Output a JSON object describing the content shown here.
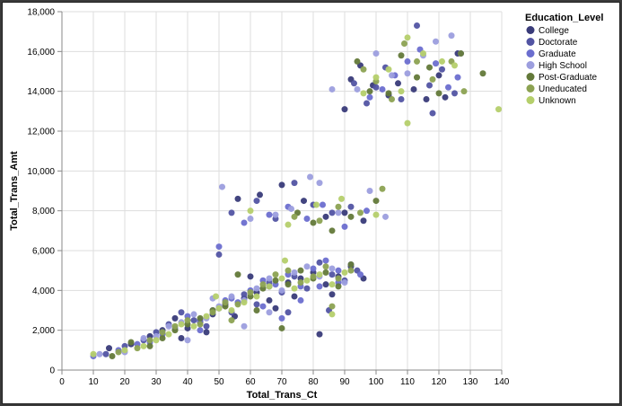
{
  "chart_data": {
    "type": "scatter",
    "title": "",
    "xlabel": "Total_Trans_Ct",
    "ylabel": "Total_Trans_Amt",
    "xlim": [
      0,
      140
    ],
    "ylim": [
      0,
      18000
    ],
    "x_ticks": [
      "0",
      "10",
      "20",
      "30",
      "40",
      "50",
      "60",
      "70",
      "80",
      "90",
      "100",
      "110",
      "120",
      "130",
      "140"
    ],
    "y_ticks": [
      "0",
      "2,000",
      "4,000",
      "6,000",
      "8,000",
      "10,000",
      "12,000",
      "14,000",
      "16,000",
      "18,000"
    ],
    "grid": true,
    "legend_title": "Education_Level",
    "legend_position": "top-right",
    "series": [
      {
        "name": "College",
        "color": "#393b79",
        "points": [
          [
            15,
            1100
          ],
          [
            22,
            1300
          ],
          [
            28,
            1700
          ],
          [
            32,
            2000
          ],
          [
            36,
            2600
          ],
          [
            40,
            2100
          ],
          [
            44,
            2400
          ],
          [
            48,
            2800
          ],
          [
            52,
            3300
          ],
          [
            55,
            2700
          ],
          [
            58,
            3600
          ],
          [
            62,
            3900
          ],
          [
            66,
            4200
          ],
          [
            68,
            3100
          ],
          [
            72,
            4400
          ],
          [
            76,
            4600
          ],
          [
            80,
            4900
          ],
          [
            84,
            4300
          ],
          [
            88,
            4700
          ],
          [
            92,
            5200
          ],
          [
            96,
            4600
          ],
          [
            56,
            8600
          ],
          [
            63,
            8800
          ],
          [
            70,
            9300
          ],
          [
            77,
            8500
          ],
          [
            84,
            7700
          ],
          [
            90,
            7900
          ],
          [
            96,
            7500
          ],
          [
            90,
            13100
          ],
          [
            92,
            14600
          ],
          [
            95,
            15300
          ],
          [
            99,
            14300
          ],
          [
            104,
            13800
          ],
          [
            107,
            14400
          ],
          [
            112,
            14100
          ],
          [
            116,
            13600
          ],
          [
            120,
            14800
          ],
          [
            122,
            13700
          ],
          [
            126,
            15900
          ],
          [
            60,
            4700
          ],
          [
            66,
            3500
          ],
          [
            38,
            1600
          ],
          [
            46,
            1900
          ],
          [
            74,
            3700
          ],
          [
            86,
            3800
          ],
          [
            82,
            1800
          ]
        ]
      },
      {
        "name": "Doctorate",
        "color": "#5254a3",
        "points": [
          [
            14,
            800
          ],
          [
            20,
            1200
          ],
          [
            26,
            1500
          ],
          [
            30,
            1900
          ],
          [
            34,
            2300
          ],
          [
            38,
            2900
          ],
          [
            42,
            2500
          ],
          [
            46,
            2200
          ],
          [
            50,
            3100
          ],
          [
            54,
            2900
          ],
          [
            58,
            3800
          ],
          [
            62,
            3300
          ],
          [
            66,
            4400
          ],
          [
            70,
            3900
          ],
          [
            74,
            4700
          ],
          [
            78,
            4100
          ],
          [
            82,
            5400
          ],
          [
            86,
            4800
          ],
          [
            90,
            4500
          ],
          [
            94,
            5000
          ],
          [
            50,
            5800
          ],
          [
            54,
            7900
          ],
          [
            62,
            8500
          ],
          [
            68,
            7600
          ],
          [
            74,
            9400
          ],
          [
            80,
            8300
          ],
          [
            86,
            7900
          ],
          [
            92,
            8200
          ],
          [
            93,
            14400
          ],
          [
            97,
            13400
          ],
          [
            100,
            14200
          ],
          [
            103,
            15200
          ],
          [
            108,
            13600
          ],
          [
            113,
            17300
          ],
          [
            117,
            14300
          ],
          [
            121,
            15100
          ],
          [
            125,
            13900
          ],
          [
            118,
            12900
          ],
          [
            85,
            3000
          ],
          [
            72,
            2900
          ]
        ]
      },
      {
        "name": "Graduate",
        "color": "#6b6ecf",
        "points": [
          [
            10,
            700
          ],
          [
            18,
            1000
          ],
          [
            24,
            1300
          ],
          [
            28,
            1400
          ],
          [
            32,
            1800
          ],
          [
            36,
            2100
          ],
          [
            40,
            2700
          ],
          [
            44,
            2500
          ],
          [
            48,
            3000
          ],
          [
            52,
            3500
          ],
          [
            56,
            3400
          ],
          [
            60,
            4000
          ],
          [
            64,
            4500
          ],
          [
            68,
            4300
          ],
          [
            72,
            4800
          ],
          [
            76,
            4200
          ],
          [
            80,
            5100
          ],
          [
            84,
            5500
          ],
          [
            88,
            5000
          ],
          [
            92,
            5300
          ],
          [
            95,
            4800
          ],
          [
            50,
            6200
          ],
          [
            58,
            7400
          ],
          [
            66,
            7800
          ],
          [
            72,
            8200
          ],
          [
            78,
            7600
          ],
          [
            83,
            8300
          ],
          [
            90,
            7200
          ],
          [
            97,
            8000
          ],
          [
            98,
            13700
          ],
          [
            102,
            14100
          ],
          [
            106,
            14800
          ],
          [
            110,
            15500
          ],
          [
            114,
            16100
          ],
          [
            119,
            15400
          ],
          [
            123,
            14200
          ],
          [
            126,
            14700
          ],
          [
            44,
            2000
          ],
          [
            54,
            3600
          ],
          [
            64,
            3200
          ],
          [
            70,
            2600
          ],
          [
            76,
            3500
          ],
          [
            82,
            4200
          ],
          [
            88,
            4400
          ]
        ]
      },
      {
        "name": "High School",
        "color": "#9c9ede",
        "points": [
          [
            12,
            800
          ],
          [
            20,
            900
          ],
          [
            26,
            1600
          ],
          [
            30,
            1700
          ],
          [
            34,
            2200
          ],
          [
            38,
            2400
          ],
          [
            42,
            2800
          ],
          [
            46,
            2600
          ],
          [
            50,
            3200
          ],
          [
            54,
            3700
          ],
          [
            58,
            3500
          ],
          [
            62,
            4100
          ],
          [
            66,
            4600
          ],
          [
            70,
            4000
          ],
          [
            74,
            4900
          ],
          [
            78,
            5200
          ],
          [
            82,
            4700
          ],
          [
            86,
            5100
          ],
          [
            90,
            4400
          ],
          [
            51,
            9200
          ],
          [
            60,
            7600
          ],
          [
            68,
            7800
          ],
          [
            73,
            8100
          ],
          [
            79,
            9700
          ],
          [
            82,
            9400
          ],
          [
            88,
            7900
          ],
          [
            98,
            9000
          ],
          [
            103,
            7700
          ],
          [
            86,
            14100
          ],
          [
            94,
            14100
          ],
          [
            100,
            15900
          ],
          [
            105,
            14800
          ],
          [
            110,
            14900
          ],
          [
            115,
            15800
          ],
          [
            119,
            16500
          ],
          [
            124,
            16800
          ],
          [
            127,
            15900
          ],
          [
            40,
            1500
          ],
          [
            48,
            3600
          ],
          [
            58,
            2200
          ],
          [
            66,
            2900
          ]
        ]
      },
      {
        "name": "Post-Graduate",
        "color": "#637939",
        "points": [
          [
            16,
            700
          ],
          [
            22,
            1400
          ],
          [
            28,
            1200
          ],
          [
            32,
            1600
          ],
          [
            36,
            2000
          ],
          [
            40,
            2300
          ],
          [
            44,
            2600
          ],
          [
            48,
            3000
          ],
          [
            52,
            3200
          ],
          [
            56,
            4800
          ],
          [
            60,
            3700
          ],
          [
            64,
            4100
          ],
          [
            68,
            4500
          ],
          [
            72,
            4300
          ],
          [
            76,
            5000
          ],
          [
            80,
            4600
          ],
          [
            84,
            4900
          ],
          [
            88,
            4200
          ],
          [
            92,
            5300
          ],
          [
            75,
            7900
          ],
          [
            80,
            7400
          ],
          [
            86,
            7000
          ],
          [
            92,
            7700
          ],
          [
            100,
            8500
          ],
          [
            94,
            15500
          ],
          [
            98,
            14000
          ],
          [
            104,
            13900
          ],
          [
            108,
            15800
          ],
          [
            113,
            14700
          ],
          [
            117,
            15200
          ],
          [
            120,
            13900
          ],
          [
            127,
            15900
          ],
          [
            134,
            14900
          ],
          [
            70,
            2100
          ],
          [
            62,
            3000
          ]
        ]
      },
      {
        "name": "Uneducated",
        "color": "#8ca252",
        "points": [
          [
            18,
            900
          ],
          [
            24,
            1100
          ],
          [
            28,
            1500
          ],
          [
            32,
            1900
          ],
          [
            36,
            2200
          ],
          [
            40,
            2500
          ],
          [
            44,
            2300
          ],
          [
            48,
            2900
          ],
          [
            52,
            3400
          ],
          [
            56,
            3300
          ],
          [
            60,
            3900
          ],
          [
            64,
            4300
          ],
          [
            68,
            4800
          ],
          [
            72,
            5000
          ],
          [
            76,
            4400
          ],
          [
            80,
            4700
          ],
          [
            84,
            5200
          ],
          [
            88,
            4600
          ],
          [
            92,
            5000
          ],
          [
            74,
            7700
          ],
          [
            82,
            7500
          ],
          [
            88,
            8200
          ],
          [
            95,
            7900
          ],
          [
            102,
            9100
          ],
          [
            96,
            15100
          ],
          [
            100,
            14500
          ],
          [
            105,
            13600
          ],
          [
            109,
            16400
          ],
          [
            113,
            15500
          ],
          [
            118,
            14600
          ],
          [
            124,
            15500
          ],
          [
            128,
            14000
          ],
          [
            54,
            2500
          ],
          [
            86,
            3200
          ]
        ]
      },
      {
        "name": "Unknown",
        "color": "#b5cf6b",
        "points": [
          [
            10,
            800
          ],
          [
            20,
            1000
          ],
          [
            26,
            1200
          ],
          [
            30,
            1500
          ],
          [
            34,
            1800
          ],
          [
            38,
            2300
          ],
          [
            42,
            2200
          ],
          [
            46,
            2700
          ],
          [
            50,
            3100
          ],
          [
            54,
            3000
          ],
          [
            58,
            3400
          ],
          [
            62,
            3700
          ],
          [
            66,
            4200
          ],
          [
            70,
            4600
          ],
          [
            74,
            4100
          ],
          [
            78,
            4500
          ],
          [
            82,
            4800
          ],
          [
            86,
            4300
          ],
          [
            90,
            4900
          ],
          [
            60,
            8000
          ],
          [
            72,
            7300
          ],
          [
            81,
            8300
          ],
          [
            89,
            8600
          ],
          [
            100,
            7800
          ],
          [
            96,
            13900
          ],
          [
            100,
            14700
          ],
          [
            104,
            15100
          ],
          [
            108,
            14000
          ],
          [
            110,
            16700
          ],
          [
            115,
            15900
          ],
          [
            121,
            15500
          ],
          [
            125,
            15300
          ],
          [
            139,
            13100
          ],
          [
            110,
            12400
          ],
          [
            49,
            3700
          ],
          [
            71,
            5500
          ],
          [
            86,
            2800
          ]
        ]
      }
    ]
  }
}
